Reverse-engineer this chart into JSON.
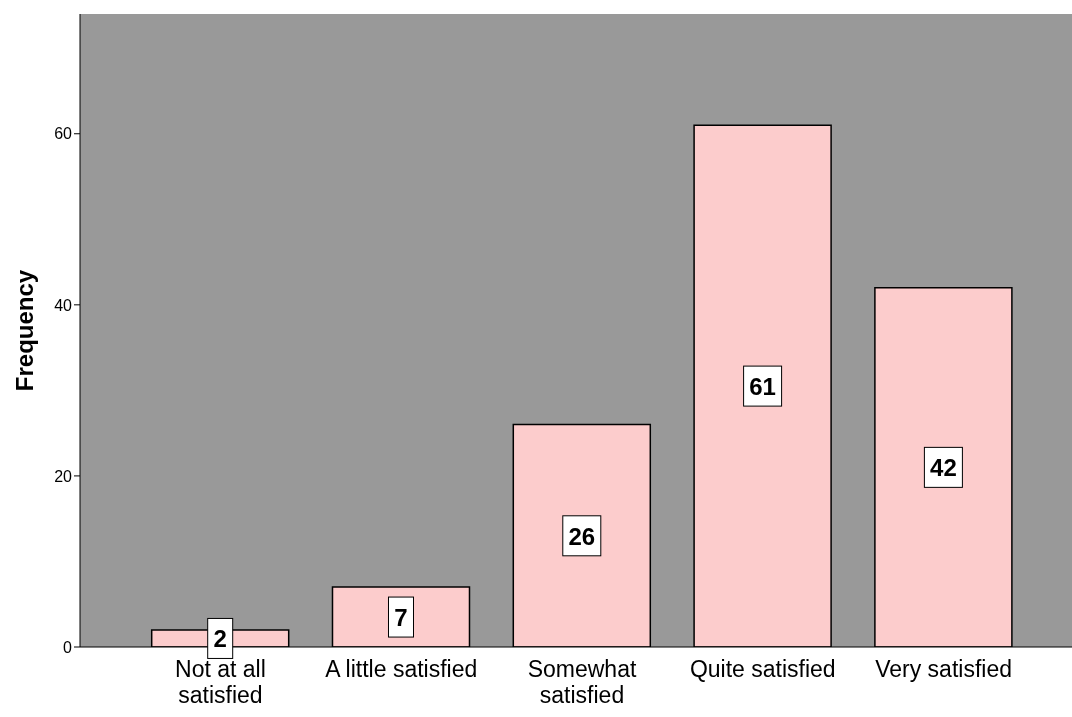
{
  "chart_data": {
    "type": "bar",
    "ylabel": "Frequency",
    "categories": [
      "Not at all satisfied",
      "A little satisfied",
      "Somewhat satisfied",
      "Quite satisfied",
      "Very satisfied"
    ],
    "values": [
      2,
      7,
      26,
      61,
      42
    ],
    "color": "#fccccc",
    "ylim": [
      0,
      74
    ],
    "yticks": [
      0,
      20,
      40,
      60
    ],
    "grid": false,
    "data_labels": true
  }
}
